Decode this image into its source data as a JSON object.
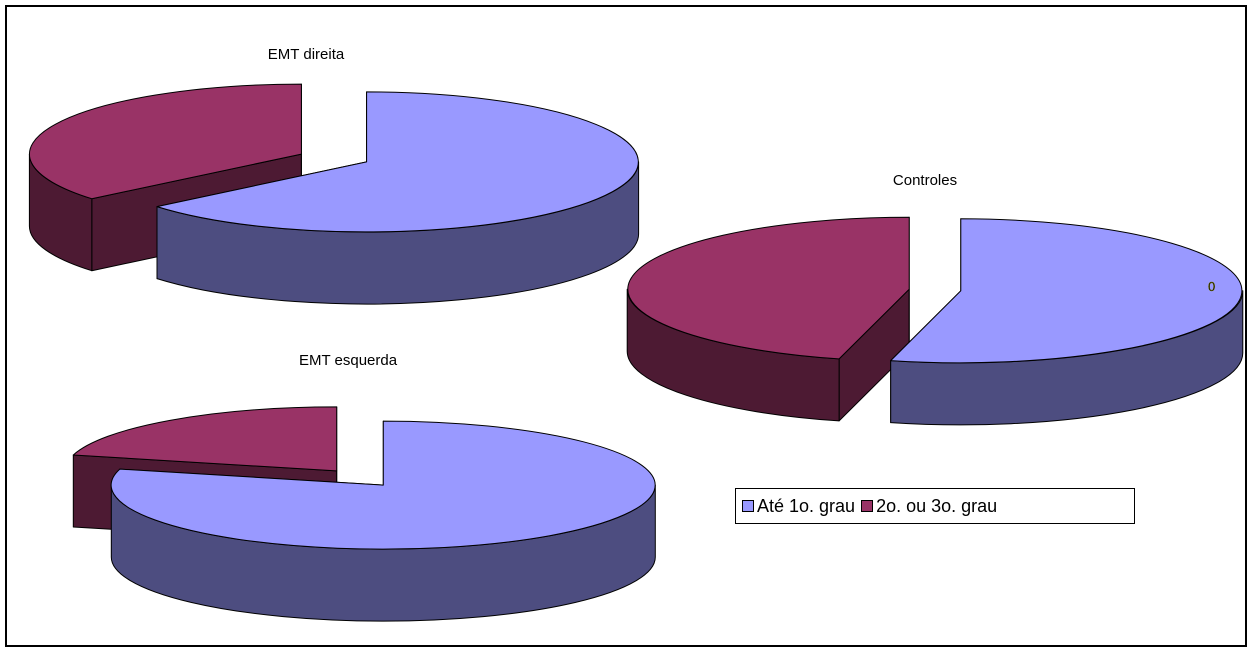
{
  "chart_data": [
    {
      "type": "pie",
      "title": "EMT direita",
      "series": [
        {
          "name": "Até 1o. grau",
          "value": 64
        },
        {
          "name": "2o. ou 3o. grau",
          "value": 36
        }
      ]
    },
    {
      "type": "pie",
      "title": "Controles",
      "series": [
        {
          "name": "Até 1o. grau",
          "value": 54
        },
        {
          "name": "2o. ou 3o. grau",
          "value": 46
        }
      ],
      "annotation": "0"
    },
    {
      "type": "pie",
      "title": "EMT esquerda",
      "series": [
        {
          "name": "Até 1o. grau",
          "value": 79
        },
        {
          "name": "2o. ou 3o. grau",
          "value": 21
        }
      ]
    }
  ],
  "legend": {
    "placement": "right",
    "entries": [
      {
        "label": "Até 1o. grau",
        "color": "#9999ff"
      },
      {
        "label": "2o. ou 3o. grau",
        "color": "#993366"
      }
    ]
  },
  "colors": {
    "Até 1o. grau": {
      "top": "#9999ff",
      "side": "#4d4d80"
    },
    "2o. ou 3o. grau": {
      "top": "#993366",
      "side": "#4d1a33"
    }
  }
}
